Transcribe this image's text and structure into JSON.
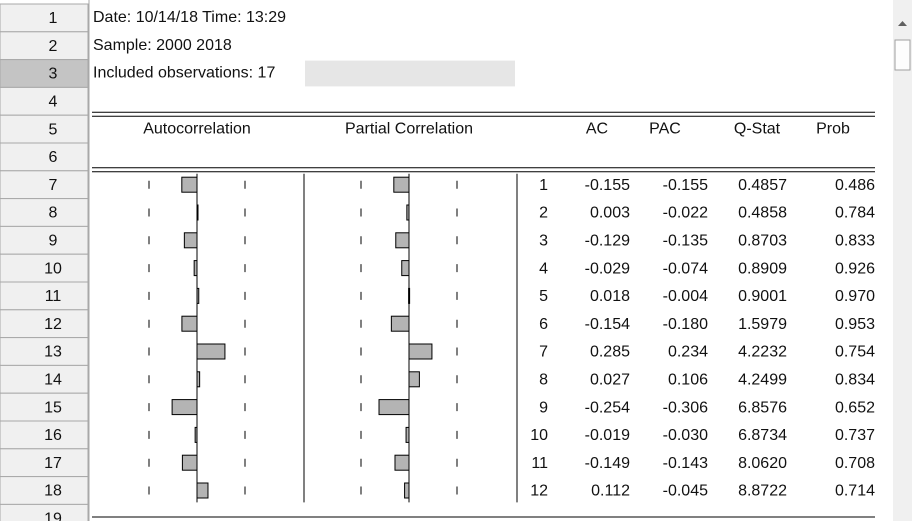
{
  "header": {
    "date_line": "Date: 10/14/18  Time: 13:29",
    "sample_line": "Sample: 2000 2018",
    "observations_line": "Included observations: 17"
  },
  "row_numbers": [
    "1",
    "2",
    "3",
    "4",
    "5",
    "6",
    "7",
    "8",
    "9",
    "10",
    "11",
    "12",
    "13",
    "14",
    "15",
    "16",
    "17",
    "18",
    "19"
  ],
  "table": {
    "columns": {
      "autocorrelation": "Autocorrelation",
      "partial_correlation": "Partial Correlation",
      "ac": "AC",
      "pac": "PAC",
      "q_stat": "Q-Stat",
      "prob": "Prob"
    },
    "rows": [
      [
        "1",
        "-0.155",
        "-0.155",
        "0.4857",
        "0.486"
      ],
      [
        "2",
        "0.003",
        "-0.022",
        "0.4858",
        "0.784"
      ],
      [
        "3",
        "-0.129",
        "-0.135",
        "0.8703",
        "0.833"
      ],
      [
        "4",
        "-0.029",
        "-0.074",
        "0.8909",
        "0.926"
      ],
      [
        "5",
        "0.018",
        "-0.004",
        "0.9001",
        "0.970"
      ],
      [
        "6",
        "-0.154",
        "-0.180",
        "1.5979",
        "0.953"
      ],
      [
        "7",
        "0.285",
        "0.234",
        "4.2232",
        "0.754"
      ],
      [
        "8",
        "0.027",
        "0.106",
        "4.2499",
        "0.834"
      ],
      [
        "9",
        "-0.254",
        "-0.306",
        "6.8576",
        "0.652"
      ],
      [
        "10",
        "-0.019",
        "-0.030",
        "6.8734",
        "0.737"
      ],
      [
        "11",
        "-0.149",
        "-0.143",
        "8.0620",
        "0.708"
      ],
      [
        "12",
        "0.112",
        "-0.045",
        "8.8722",
        "0.714"
      ]
    ]
  }
}
